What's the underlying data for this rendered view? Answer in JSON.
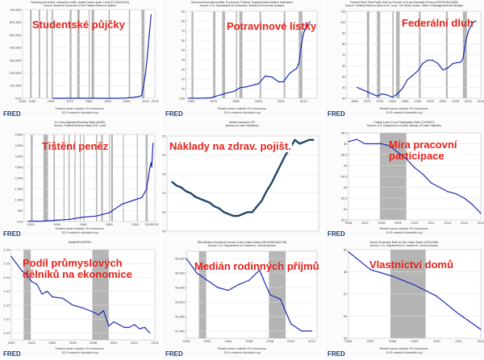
{
  "panels": [
    {
      "title": "Studentské půjčky",
      "subtitle": "Federal government; consumer credit, student loans; asset, Level (FL315411003)",
      "subtitle2": "Source: Board of Governors of the Federal Reserve System",
      "footnote1": "Shaded areas indicate US recessions.",
      "footnote2": "2013 research.stlouisfed.org",
      "brand": "FRED",
      "chart_data": {
        "type": "line",
        "x": [
          1961,
          1966,
          1971,
          1976,
          1981,
          1986,
          1991,
          1996,
          2000,
          2003,
          2005,
          2007,
          2008,
          2009,
          2010,
          2011,
          2012,
          2013
        ],
        "values": [
          0,
          0,
          0,
          0,
          0,
          0,
          0,
          0,
          2000,
          6000,
          10000,
          15000,
          25000,
          100000,
          190000,
          330000,
          500000,
          660000
        ],
        "xlim": [
          1945,
          2015
        ],
        "ylim": [
          0,
          700000
        ],
        "xticks": [
          1945,
          1950,
          1960,
          1970,
          1980,
          1990,
          2000,
          2010,
          2015
        ],
        "yticks": [
          0,
          100000,
          200000,
          300000,
          400000,
          500000,
          600000,
          700000
        ],
        "recessions": [
          [
            1948.9,
            1949.8
          ],
          [
            1953.5,
            1954.3
          ],
          [
            1957.6,
            1958.3
          ],
          [
            1960.3,
            1961.1
          ],
          [
            1969.9,
            1970.9
          ],
          [
            1973.9,
            1975.2
          ],
          [
            1980.0,
            1980.5
          ],
          [
            1981.5,
            1982.9
          ],
          [
            1990.5,
            1991.2
          ],
          [
            2001.2,
            2001.9
          ],
          [
            2007.9,
            2009.5
          ]
        ]
      }
    },
    {
      "title": "Potravinové lístky",
      "subtitle": "Government social benefits: To persons: Federal: Supplemental Nutrition Assistance",
      "subtitle2": "Source: U.S. Department of Commerce: Bureau of Economic Analysis",
      "footnote1": "Shaded areas indicate US recessions.",
      "footnote2": "2013 research.stlouisfed.org",
      "brand": "FRED",
      "chart_data": {
        "type": "line",
        "x": [
          1959,
          1965,
          1969,
          1971,
          1974,
          1976,
          1979,
          1982,
          1985,
          1990,
          1993,
          1996,
          1999,
          2001,
          2004,
          2007,
          2008,
          2009,
          2010,
          2011,
          2012,
          2013
        ],
        "values": [
          0,
          0.1,
          0.5,
          2,
          4,
          5.5,
          7,
          11,
          12,
          15,
          23,
          22,
          17,
          17,
          26,
          31,
          37,
          54,
          67,
          73,
          77,
          79
        ],
        "xlim": [
          1958,
          2016
        ],
        "ylim": [
          0,
          90
        ],
        "xticks": [
          1960,
          1970,
          1980,
          1990,
          2000,
          2010
        ],
        "yticks": [
          0,
          10,
          20,
          30,
          40,
          50,
          60,
          70,
          80,
          90
        ],
        "recessions": [
          [
            1960.3,
            1961.1
          ],
          [
            1969.9,
            1970.9
          ],
          [
            1973.9,
            1975.2
          ],
          [
            1980.0,
            1980.5
          ],
          [
            1981.5,
            1982.9
          ],
          [
            1990.5,
            1991.2
          ],
          [
            2001.2,
            2001.9
          ],
          [
            2007.9,
            2009.5
          ]
        ]
      }
    },
    {
      "title": "Federální dluh",
      "subtitle": "Federal Debt: Total Public Debt as Percent of Gross Domestic Product (GFDEGDQ188S)",
      "subtitle2": "Source: Federal Reserve Bank of St. Louis, The White House: Office of Management and Budget",
      "footnote1": "Shaded areas indicate US recessions.",
      "footnote2": "2013 research.stlouisfed.org",
      "brand": "FRED",
      "chart_data": {
        "type": "line",
        "x": [
          1966,
          1968,
          1970,
          1972,
          1974,
          1976,
          1978,
          1980,
          1982,
          1984,
          1986,
          1988,
          1990,
          1992,
          1994,
          1996,
          1998,
          2000,
          2002,
          2004,
          2006,
          2007,
          2008,
          2009,
          2010,
          2011,
          2012,
          2013
        ],
        "values": [
          40,
          38,
          36,
          34,
          32,
          34,
          33,
          31,
          34,
          39,
          47,
          51,
          55,
          62,
          65,
          65,
          62,
          56,
          58,
          62,
          63,
          63,
          67,
          82,
          91,
          96,
          100,
          101
        ],
        "xlim": [
          1962,
          2015
        ],
        "ylim": [
          30,
          110
        ],
        "xticks": [
          1965,
          1970,
          1975,
          1980,
          1985,
          1990,
          1995,
          2000,
          2005,
          2010,
          2015
        ],
        "yticks": [
          30,
          40,
          50,
          60,
          70,
          80,
          90,
          100,
          110
        ],
        "recessions": [
          [
            1969.9,
            1970.9
          ],
          [
            1973.9,
            1975.2
          ],
          [
            1980.0,
            1980.5
          ],
          [
            1981.5,
            1982.9
          ],
          [
            1990.5,
            1991.2
          ],
          [
            2001.2,
            2001.9
          ],
          [
            2007.9,
            2009.5
          ]
        ]
      }
    },
    {
      "title": "Tištění peněz",
      "subtitle": "St. Louis Adjusted Monetary Base (BASE)",
      "subtitle2": "Source: Federal Reserve Bank of St. Louis",
      "footnote1": "Shaded areas indicate US recessions.",
      "footnote2": "2013 research.stlouisfed.org",
      "brand": "FRED",
      "chart_data": {
        "type": "line",
        "x": [
          1918,
          1930,
          1940,
          1950,
          1960,
          1970,
          1980,
          1990,
          2000,
          2005,
          2008.7,
          2009,
          2010,
          2011,
          2012,
          2012.6,
          2013,
          2013.6
        ],
        "values": [
          10,
          20,
          60,
          100,
          200,
          250,
          400,
          800,
          1000,
          1100,
          1500,
          1700,
          2000,
          2400,
          2700,
          2500,
          3000,
          3600
        ],
        "xlim": [
          1915,
          2015
        ],
        "ylim": [
          0,
          4000
        ],
        "xticks": [
          1920,
          1940,
          1960,
          1980,
          2000,
          2010,
          2015
        ],
        "yticks": [
          0,
          500,
          1000,
          1500,
          2000,
          2500,
          3000,
          3500,
          4000
        ],
        "recessions": [
          [
            1920,
            1921.5
          ],
          [
            1929.7,
            1933.2
          ],
          [
            1937.4,
            1938.5
          ],
          [
            1945.1,
            1945.8
          ],
          [
            1948.9,
            1949.8
          ],
          [
            1953.5,
            1954.3
          ],
          [
            1957.6,
            1958.3
          ],
          [
            1960.3,
            1961.1
          ],
          [
            1969.9,
            1970.9
          ],
          [
            1973.9,
            1975.2
          ],
          [
            1980.0,
            1980.5
          ],
          [
            1981.5,
            1982.9
          ],
          [
            1990.5,
            1991.2
          ],
          [
            2001.2,
            2001.9
          ],
          [
            2007.9,
            2009.5
          ]
        ]
      }
    },
    {
      "title": "Náklady na zdrav. pojišt.",
      "subtitle": "Health Insurance CPI",
      "subtitle2": "(Bureau of Labor Statistics)",
      "footnote1": "",
      "footnote2": "",
      "brand": "",
      "chart_data": {
        "type": "line",
        "x": [
          0,
          1,
          2,
          3,
          4,
          5,
          6,
          7,
          8,
          9,
          10,
          11,
          12,
          13,
          14,
          15,
          16,
          17,
          18,
          19,
          20,
          21,
          22,
          23,
          24,
          25,
          26,
          27,
          28,
          29,
          30
        ],
        "values": [
          113,
          112,
          111.5,
          110.5,
          110,
          109,
          108.5,
          108,
          107.5,
          106.5,
          106,
          105,
          104.5,
          104,
          104,
          104.5,
          105,
          105,
          106.5,
          108,
          110.5,
          112.5,
          115,
          117.5,
          120,
          122,
          124,
          123,
          123.5,
          124,
          124
        ],
        "xlim": [
          -1,
          31
        ],
        "ylim": [
          100,
          125
        ],
        "yticks": [
          100,
          105,
          110,
          115,
          120,
          125
        ]
      }
    },
    {
      "title": "Míra pracovní participace",
      "subtitle": "Civilian Labor Force Participation Rate (CIVPART)",
      "subtitle2": "Source: U.S. Department of Labor: Bureau of Labor Statistics",
      "footnote1": "Shaded areas indicate US recessions.",
      "footnote2": "2013 research.stlouisfed.org",
      "brand": "FRED",
      "chart_data": {
        "type": "line",
        "x": [
          2006,
          2006.5,
          2007,
          2007.5,
          2008,
          2008.5,
          2009,
          2009.5,
          2010,
          2010.5,
          2011,
          2011.5,
          2012,
          2012.5,
          2013,
          2013.5,
          2014
        ],
        "values": [
          66.1,
          66.2,
          66.0,
          66.0,
          66.0,
          65.9,
          65.6,
          65.3,
          64.9,
          64.6,
          64.2,
          64.0,
          63.8,
          63.7,
          63.5,
          63.2,
          62.8
        ],
        "xlim": [
          2006,
          2014
        ],
        "ylim": [
          62.5,
          66.5
        ],
        "xticks": [
          2006,
          2007,
          2008,
          2009,
          2010,
          2011,
          2012,
          2013,
          2014
        ],
        "yticks": [
          62.5,
          63.0,
          63.5,
          64.0,
          64.5,
          65.0,
          65.5,
          66.0,
          66.5
        ],
        "recessions": [
          [
            2007.9,
            2009.5
          ]
        ]
      }
    },
    {
      "title": "Podíl průmyslových dělníků na ekonomice",
      "subtitle": "MANEMP/USPRIV",
      "subtitle2": "",
      "footnote1": "Shaded areas indicate US recessions.",
      "footnote2": "2013 research.stlouisfed.org",
      "brand": "FRED",
      "chart_data": {
        "type": "line",
        "x": [
          2000,
          2000.5,
          2001,
          2001.5,
          2002,
          2002.5,
          2003,
          2003.5,
          2004,
          2005,
          2006,
          2007,
          2008,
          2008.5,
          2009,
          2009.5,
          2010,
          2010.5,
          2011,
          2011.5,
          2012,
          2012.5,
          2013,
          2013.5
        ],
        "values": [
          0.155,
          0.15,
          0.145,
          0.142,
          0.137,
          0.135,
          0.128,
          0.13,
          0.126,
          0.125,
          0.12,
          0.118,
          0.115,
          0.113,
          0.116,
          0.105,
          0.108,
          0.106,
          0.104,
          0.104,
          0.106,
          0.103,
          0.104,
          0.1
        ],
        "xlim": [
          2000,
          2014
        ],
        "ylim": [
          0.095,
          0.16
        ],
        "xticks": [
          2000,
          2002,
          2004,
          2006,
          2008,
          2010,
          2012,
          2014
        ],
        "yticks": [
          0.1,
          0.11,
          0.12,
          0.13,
          0.14,
          0.15,
          0.16
        ],
        "recessions": [
          [
            2001.2,
            2001.9
          ],
          [
            2007.9,
            2009.5
          ]
        ]
      }
    },
    {
      "title": "Medián rodinných příjmů",
      "subtitle": "Real Median Household Income in the United States (MEHOINUSA672N)",
      "subtitle2": "Source: U.S. Department of Commerce: Census Bureau",
      "footnote1": "Shaded areas indicate US recessions.",
      "footnote2": "2013 research.stlouisfed.org",
      "brand": "FRED",
      "chart_data": {
        "type": "line",
        "x": [
          2000,
          2001,
          2002,
          2003,
          2004,
          2005,
          2006,
          2007,
          2008,
          2009,
          2010,
          2011,
          2012
        ],
        "values": [
          56000,
          55000,
          54500,
          54000,
          53800,
          54200,
          54500,
          55200,
          53500,
          53200,
          51500,
          51000,
          51000
        ],
        "xlim": [
          2000,
          2012.5
        ],
        "ylim": [
          50500,
          56500
        ],
        "xticks": [
          2000,
          2002,
          2004,
          2006,
          2008,
          2010,
          2012
        ],
        "yticks": [
          51000,
          52000,
          53000,
          54000,
          55000,
          56000
        ],
        "recessions": [
          [
            2001.2,
            2001.9
          ],
          [
            2007.9,
            2009.5
          ]
        ]
      }
    },
    {
      "title": "Vlastnictví domů",
      "subtitle": "Home Ownership Rate for the United States (USHOWN)",
      "subtitle2": "Source: U.S. Department of Commerce: Census Bureau",
      "footnote1": "Shaded areas indicate US recessions.",
      "footnote2": "2013 research.stlouisfed.org",
      "brand": "FRED",
      "chart_data": {
        "type": "line",
        "x": [
          2006,
          2007,
          2008,
          2009,
          2010,
          2011,
          2012
        ],
        "values": [
          68.9,
          68.1,
          67.8,
          67.4,
          66.9,
          66.1,
          65.4
        ],
        "xlim": [
          2006,
          2012
        ],
        "ylim": [
          65.0,
          69.0
        ],
        "xticks": [
          2006,
          2007,
          2008,
          2009,
          2010,
          2011,
          2012
        ],
        "yticks": [
          65.0,
          66.0,
          67.0,
          68.0,
          69.0
        ],
        "recessions": [
          [
            2007.9,
            2009.5
          ]
        ]
      }
    }
  ]
}
